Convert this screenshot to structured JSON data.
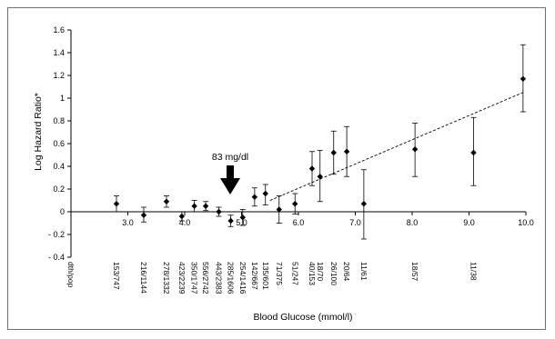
{
  "chart_data": {
    "type": "scatter",
    "title": "",
    "xlabel": "Blood Glucose (mmol/l)",
    "ylabel": "Log Hazard Ratio*",
    "xlim": [
      2.0,
      10.0
    ],
    "ylim": [
      -0.4,
      1.6
    ],
    "x_ticks": [
      3.0,
      4.0,
      5.0,
      6.0,
      7.0,
      8.0,
      9.0,
      10.0
    ],
    "x_tick_labels": [
      "3.0",
      "4.0",
      "5.0",
      "6.0",
      "7.0",
      "8.0",
      "9.0",
      "10.0"
    ],
    "y_ticks": [
      1.6,
      1.4,
      1.2,
      1.0,
      0.8,
      0.6,
      0.4,
      0.2,
      0.0,
      -0.2,
      -0.4
    ],
    "y_tick_labels": [
      "1.6",
      "1.4",
      "1.2",
      "1",
      "0.8",
      "0.6",
      "0.4",
      "0.2",
      "0",
      "- 0.2",
      "- 0.4"
    ],
    "points": [
      {
        "x": 2.8,
        "y": 0.07,
        "lo": 0.0,
        "hi": 0.14
      },
      {
        "x": 3.28,
        "y": -0.03,
        "lo": -0.09,
        "hi": 0.04
      },
      {
        "x": 3.68,
        "y": 0.09,
        "lo": 0.04,
        "hi": 0.14
      },
      {
        "x": 3.95,
        "y": -0.04,
        "lo": -0.08,
        "hi": 0.0
      },
      {
        "x": 4.17,
        "y": 0.05,
        "lo": 0.0,
        "hi": 0.1
      },
      {
        "x": 4.37,
        "y": 0.05,
        "lo": 0.01,
        "hi": 0.09
      },
      {
        "x": 4.6,
        "y": 0.0,
        "lo": -0.04,
        "hi": 0.04
      },
      {
        "x": 4.81,
        "y": -0.08,
        "lo": -0.13,
        "hi": -0.03
      },
      {
        "x": 5.02,
        "y": -0.05,
        "lo": -0.12,
        "hi": 0.02
      },
      {
        "x": 5.23,
        "y": 0.13,
        "lo": 0.05,
        "hi": 0.21
      },
      {
        "x": 5.42,
        "y": 0.16,
        "lo": 0.06,
        "hi": 0.24
      },
      {
        "x": 5.66,
        "y": 0.02,
        "lo": -0.1,
        "hi": 0.14
      },
      {
        "x": 5.94,
        "y": 0.07,
        "lo": -0.02,
        "hi": 0.16
      },
      {
        "x": 6.24,
        "y": 0.38,
        "lo": 0.23,
        "hi": 0.53
      },
      {
        "x": 6.38,
        "y": 0.31,
        "lo": 0.09,
        "hi": 0.54
      },
      {
        "x": 6.62,
        "y": 0.52,
        "lo": 0.33,
        "hi": 0.71
      },
      {
        "x": 6.85,
        "y": 0.53,
        "lo": 0.31,
        "hi": 0.75
      },
      {
        "x": 7.15,
        "y": 0.07,
        "lo": -0.24,
        "hi": 0.37
      },
      {
        "x": 8.05,
        "y": 0.55,
        "lo": 0.31,
        "hi": 0.78
      },
      {
        "x": 9.08,
        "y": 0.52,
        "lo": 0.23,
        "hi": 0.83
      },
      {
        "x": 9.95,
        "y": 1.17,
        "lo": 0.88,
        "hi": 1.47
      }
    ],
    "trend_line": {
      "x": [
        5.5,
        9.95
      ],
      "y": [
        0.1,
        1.05
      ]
    },
    "annotation": {
      "text": "83 mg/dl",
      "x": 4.8
    },
    "counts_header": "dth/pop",
    "counts": [
      {
        "x": 2.8,
        "label": "153/747"
      },
      {
        "x": 3.28,
        "label": "216/1144"
      },
      {
        "x": 3.68,
        "label": "278/1332"
      },
      {
        "x": 3.95,
        "label": "423/2239"
      },
      {
        "x": 4.17,
        "label": "350/1747"
      },
      {
        "x": 4.37,
        "label": "556/2742"
      },
      {
        "x": 4.6,
        "label": "443/2383"
      },
      {
        "x": 4.81,
        "label": "285/1606"
      },
      {
        "x": 5.02,
        "label": "254/1416"
      },
      {
        "x": 5.23,
        "label": "142/667"
      },
      {
        "x": 5.42,
        "label": "135/601"
      },
      {
        "x": 5.66,
        "label": "71/375"
      },
      {
        "x": 5.94,
        "label": "51/247"
      },
      {
        "x": 6.24,
        "label": "40/153"
      },
      {
        "x": 6.38,
        "label": "18/70"
      },
      {
        "x": 6.62,
        "label": "26/100"
      },
      {
        "x": 6.85,
        "label": "20/64"
      },
      {
        "x": 7.15,
        "label": "11/61"
      },
      {
        "x": 8.05,
        "label": "18/57"
      },
      {
        "x": 9.08,
        "label": "11/38"
      }
    ],
    "grid": false,
    "legend": "none"
  }
}
